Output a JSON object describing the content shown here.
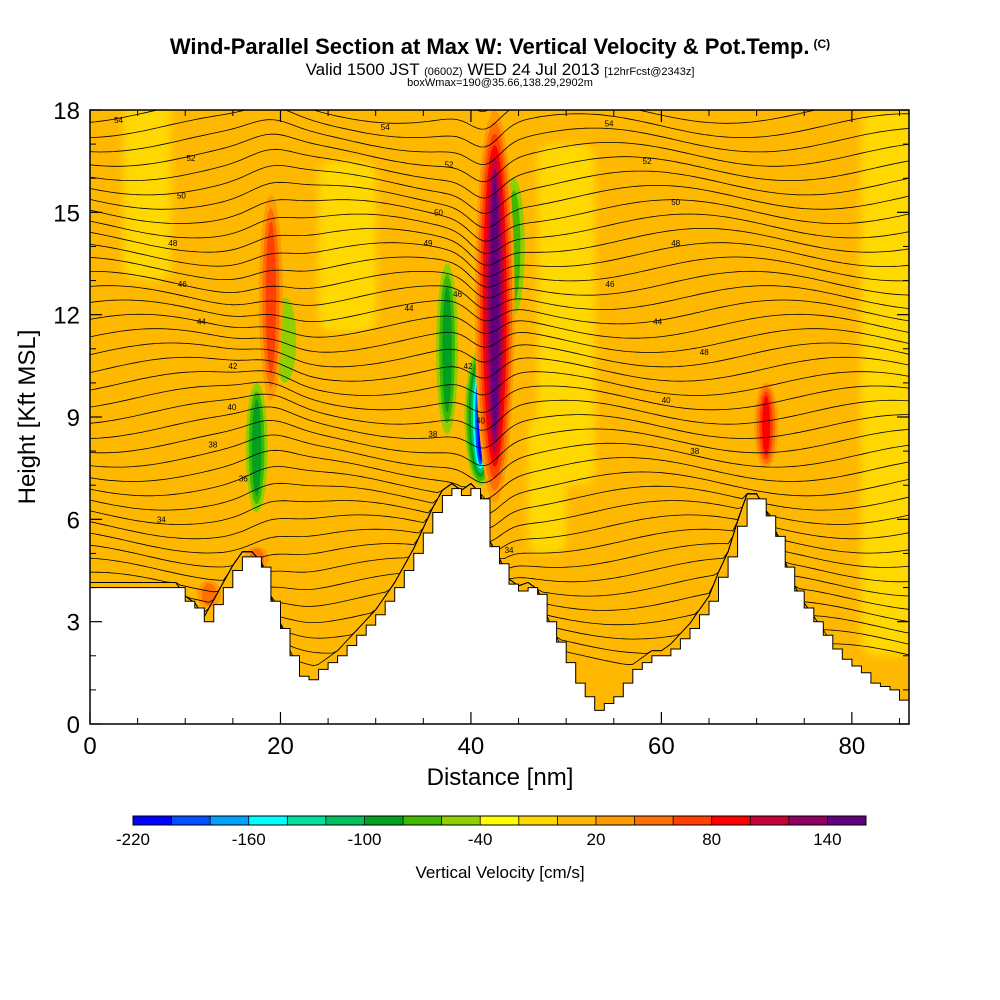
{
  "title": "Wind-Parallel Section at Max W: Vertical Velocity & Pot.Temp.",
  "title_mark": "(C)",
  "subtitle_valid": "Valid 1500 JST",
  "subtitle_z": "(0600Z)",
  "subtitle_date": "WED 24 Jul 2013",
  "subtitle_fcst": "[12hrFcst@2343z]",
  "subtitle_box": "boxWmax=190@35.66,138.29,2902m",
  "chart_data": {
    "type": "heatmap",
    "xlabel": "Distance [nm]",
    "ylabel": "Height [Kft MSL]",
    "xlim": [
      0,
      86
    ],
    "ylim": [
      0,
      18
    ],
    "x_ticks": [
      0,
      20,
      40,
      60,
      80
    ],
    "y_ticks": [
      0,
      3,
      6,
      9,
      12,
      15,
      18
    ],
    "colorbar": {
      "label": "Vertical Velocity [cm/s]",
      "tick_labels": [
        "-220",
        "-160",
        "-100",
        "-40",
        "20",
        "80",
        "140"
      ],
      "tick_values": [
        -220,
        -160,
        -100,
        -40,
        20,
        80,
        140
      ],
      "bins": [
        -220,
        -200,
        -180,
        -160,
        -140,
        -120,
        -100,
        -80,
        -60,
        -40,
        -20,
        0,
        20,
        40,
        60,
        80,
        100,
        120,
        140,
        160
      ],
      "colors": [
        "#0000ff",
        "#0050ff",
        "#00a0ff",
        "#00ffff",
        "#00e0a0",
        "#00c060",
        "#00a020",
        "#40b800",
        "#90d000",
        "#ffff00",
        "#ffd800",
        "#ffb800",
        "#ff9a00",
        "#ff7000",
        "#ff4000",
        "#ff0000",
        "#c8003a",
        "#900060",
        "#600080"
      ]
    },
    "terrain_profile": {
      "x": [
        0,
        9,
        10,
        11,
        12,
        13,
        14,
        15,
        16,
        17,
        18,
        19,
        20,
        21,
        22,
        23,
        24,
        25,
        26,
        27,
        28,
        29,
        30,
        31,
        32,
        33,
        34,
        35,
        36,
        37,
        38,
        39,
        40,
        41,
        42,
        43,
        44,
        45,
        46,
        47,
        48,
        49,
        50,
        51,
        52,
        53,
        54,
        55,
        56,
        57,
        58,
        59,
        60,
        61,
        62,
        63,
        64,
        65,
        66,
        67,
        68,
        69,
        70,
        71,
        72,
        73,
        74,
        75,
        76,
        77,
        78,
        79,
        80,
        81,
        82,
        83,
        84,
        85,
        86
      ],
      "y": [
        4.0,
        4.0,
        3.6,
        3.4,
        3.0,
        3.5,
        4.0,
        4.5,
        4.9,
        4.9,
        4.6,
        3.6,
        2.8,
        2.0,
        1.4,
        1.3,
        1.6,
        1.8,
        2.0,
        2.3,
        2.6,
        2.9,
        3.2,
        3.6,
        4.0,
        4.5,
        5.0,
        5.6,
        6.2,
        6.7,
        6.9,
        6.7,
        6.9,
        6.6,
        5.2,
        4.7,
        4.1,
        3.9,
        4.0,
        3.8,
        3.0,
        2.4,
        1.8,
        1.2,
        0.8,
        0.4,
        0.6,
        0.8,
        1.2,
        1.6,
        1.8,
        2.0,
        2.0,
        2.2,
        2.5,
        2.8,
        3.2,
        3.6,
        4.3,
        4.9,
        5.8,
        6.6,
        6.6,
        6.1,
        5.5,
        4.6,
        3.9,
        3.4,
        3.0,
        2.6,
        2.2,
        1.9,
        1.7,
        1.5,
        1.2,
        1.1,
        1.0,
        0.7,
        0.7
      ]
    },
    "updrafts": [
      {
        "x": 42.5,
        "y": [
          6.5,
          18.0
        ],
        "w_max": 150
      },
      {
        "x": 19.0,
        "y": [
          9.5,
          15.5
        ],
        "w_max": 60
      },
      {
        "x": 71.0,
        "y": [
          7.5,
          10.0
        ],
        "w_max": 80
      },
      {
        "x": 17.5,
        "y": [
          4.5,
          5.2
        ],
        "w_max": 40
      },
      {
        "x": 12.5,
        "y": [
          3.4,
          4.2
        ],
        "w_max": 40
      }
    ],
    "downdrafts": [
      {
        "x": 41.0,
        "y": [
          7.0,
          11.0
        ],
        "w_min": -220
      },
      {
        "x": 37.5,
        "y": [
          8.5,
          13.5
        ],
        "w_min": -80
      },
      {
        "x": 17.5,
        "y": [
          6.2,
          10.0
        ],
        "w_min": -80
      },
      {
        "x": 44.5,
        "y": [
          12.0,
          16.0
        ],
        "w_min": -60
      },
      {
        "x": 20.5,
        "y": [
          10.0,
          12.5
        ],
        "w_min": -40
      }
    ],
    "theta_contour_labels": [
      {
        "text": "54",
        "x": 3,
        "y": 17.7
      },
      {
        "text": "54",
        "x": 31,
        "y": 17.5
      },
      {
        "text": "54",
        "x": 54.5,
        "y": 17.6
      },
      {
        "text": "52",
        "x": 10.6,
        "y": 16.6
      },
      {
        "text": "52",
        "x": 37.7,
        "y": 16.4
      },
      {
        "text": "52",
        "x": 58.5,
        "y": 16.5
      },
      {
        "text": "50",
        "x": 9.6,
        "y": 15.5
      },
      {
        "text": "50",
        "x": 36.6,
        "y": 15.0
      },
      {
        "text": "50",
        "x": 61.5,
        "y": 15.3
      },
      {
        "text": "48",
        "x": 8.7,
        "y": 14.1
      },
      {
        "text": "49",
        "x": 35.5,
        "y": 14.1
      },
      {
        "text": "48",
        "x": 61.5,
        "y": 14.1
      },
      {
        "text": "46",
        "x": 9.7,
        "y": 12.9
      },
      {
        "text": "46",
        "x": 38.6,
        "y": 12.6
      },
      {
        "text": "46",
        "x": 54.6,
        "y": 12.9
      },
      {
        "text": "44",
        "x": 11.7,
        "y": 11.8
      },
      {
        "text": "44",
        "x": 33.5,
        "y": 12.2
      },
      {
        "text": "44",
        "x": 59.6,
        "y": 11.8
      },
      {
        "text": "42",
        "x": 15.0,
        "y": 10.5
      },
      {
        "text": "42",
        "x": 39.7,
        "y": 10.5
      },
      {
        "text": "48",
        "x": 64.5,
        "y": 10.9
      },
      {
        "text": "40",
        "x": 14.9,
        "y": 9.3
      },
      {
        "text": "40",
        "x": 41.0,
        "y": 8.9
      },
      {
        "text": "40",
        "x": 60.5,
        "y": 9.5
      },
      {
        "text": "38",
        "x": 12.9,
        "y": 8.2
      },
      {
        "text": "38",
        "x": 36.0,
        "y": 8.5
      },
      {
        "text": "38",
        "x": 63.5,
        "y": 8.0
      },
      {
        "text": "36",
        "x": 16.1,
        "y": 7.2
      },
      {
        "text": "34",
        "x": 7.5,
        "y": 6.0
      },
      {
        "text": "34",
        "x": 44.0,
        "y": 5.1
      }
    ]
  }
}
